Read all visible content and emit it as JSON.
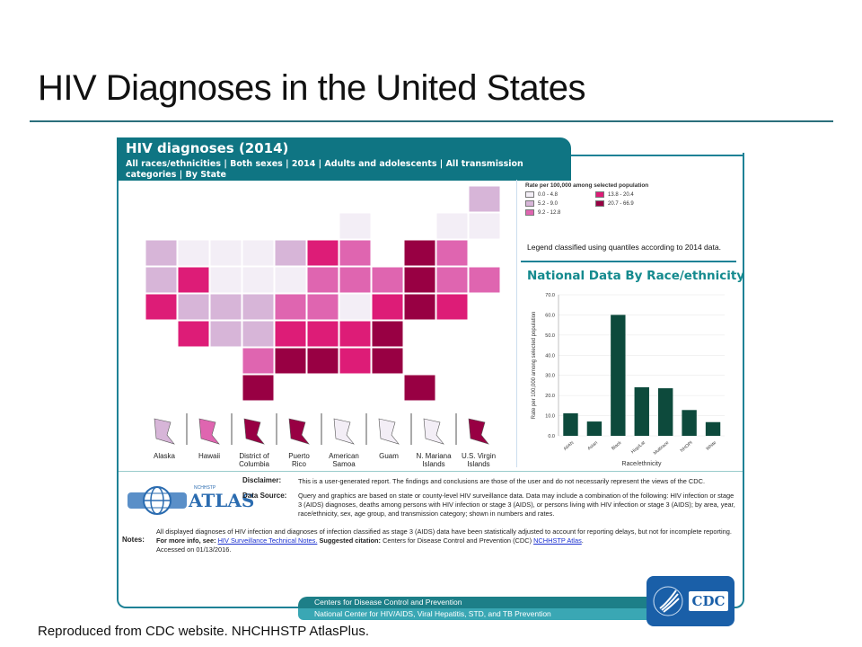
{
  "slide_title": "HIV Diagnoses in the United States",
  "report": {
    "title": "HIV diagnoses (2014)",
    "subtitle": "All races/ethnicities | Both sexes | 2014 | Adults and adolescents | All transmission categories | By State"
  },
  "legend": {
    "title": "Rate per 100,000 among selected population",
    "classes": [
      {
        "label": "0.0 - 4.8",
        "color": "#f3eef6"
      },
      {
        "label": "5.2 - 9.0",
        "color": "#d7b5d8"
      },
      {
        "label": "9.2 - 12.8",
        "color": "#df65b0"
      },
      {
        "label": "13.8 - 20.4",
        "color": "#dd1c77"
      },
      {
        "label": "20.7 - 66.9",
        "color": "#980043"
      }
    ],
    "note": "Legend classified using quantiles according to 2014 data."
  },
  "territories": [
    {
      "label": "Alaska",
      "class": 1
    },
    {
      "label": "Hawaii",
      "class": 2
    },
    {
      "label": "District of Columbia",
      "class": 4
    },
    {
      "label": "Puerto Rico",
      "class": 4
    },
    {
      "label": "American Samoa",
      "class": 0
    },
    {
      "label": "Guam",
      "class": 0
    },
    {
      "label": "N. Mariana Islands",
      "class": 0
    },
    {
      "label": "U.S. Virgin Islands",
      "class": 4
    }
  ],
  "chart_title": "National Data By Race/ethnicity",
  "chart_data": {
    "type": "bar",
    "categories": [
      "AI/AN",
      "Asian",
      "Black",
      "Hisp/Lat",
      "Multirace",
      "NHOPI",
      "White"
    ],
    "values": [
      11.2,
      7.1,
      60.0,
      24.1,
      23.6,
      12.8,
      6.8
    ],
    "xlabel": "Race/ethnicity",
    "ylabel": "Rate per 100,000 among selected population",
    "ylim": [
      0,
      70
    ],
    "yticks": [
      "0.0",
      "10.0",
      "20.0",
      "30.0",
      "40.0",
      "50.0",
      "60.0",
      "70.0"
    ],
    "bar_color": "#0d4a3c",
    "grid": true
  },
  "info": {
    "logo_small": "NCHHSTP",
    "logo_text": "ATLAS",
    "disclaimer_label": "Disclaimer:",
    "disclaimer": "This is a user-generated report. The findings and conclusions are those of the user and do not necessarily represent the views of the CDC.",
    "source_label": "Data Source:",
    "source": "Query and graphics are based on state or county-level HIV surveillance data. Data may include a combination of the following: HIV infection or stage 3 (AIDS) diagnoses, deaths among persons with HIV infection or stage 3 (AIDS), or persons living with HIV infection or stage 3 (AIDS); by area, year, race/ethnicity, sex, age group, and transmission category; shown in numbers and rates.",
    "notes_label": "Notes:",
    "notes_1": "All displayed diagnoses of HIV infection and diagnoses of infection classified as stage 3 (AIDS) data have been statistically adjusted to account for reporting delays, but not for incomplete reporting.",
    "more_info": "For more info, see:",
    "tech_notes_link": "HIV Surveillance Technical Notes.",
    "citation_label": "Suggested citation:",
    "citation": "Centers for Disease Control and Prevention (CDC)",
    "atlas_link": "NCHHSTP Atlas",
    "accessed": "Accessed on 01/13/2016."
  },
  "footer": {
    "line1": "Centers for Disease Control and Prevention",
    "line2": "National Center for HIV/AIDS, Viral Hepatitis, STD, and TB Prevention",
    "cdc_logo": "CDC"
  },
  "caption": "Reproduced from CDC website. NHCHHSTP AtlasPlus."
}
